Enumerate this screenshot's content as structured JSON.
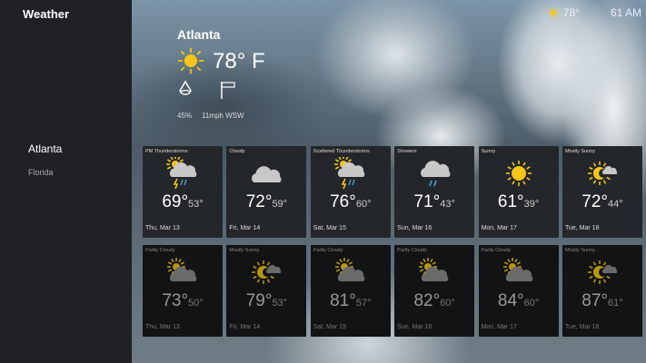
{
  "app": {
    "title": "Weather"
  },
  "sidebar": {
    "location": "Atlanta",
    "region": "Florida"
  },
  "current": {
    "city": "Atlanta",
    "temp": "78° F",
    "icon": "sun-icon",
    "humidity": "45%",
    "wind": "11mph WSW"
  },
  "status": {
    "temp": "78°",
    "time": "61 AM"
  },
  "colors": {
    "sun": "#f5c518",
    "rain": "#4aa8e0",
    "cloud": "#c8c8c8",
    "sidebar": "#1f2124",
    "card": "#23272b"
  },
  "forecast": [
    {
      "cond": "PM Thunderstorms",
      "icon": "thunderstorm",
      "hi": "69°",
      "lo": "53°",
      "date": "Thu, Mar 13"
    },
    {
      "cond": "Cloudy",
      "icon": "cloudy",
      "hi": "72°",
      "lo": "59°",
      "date": "Fri, Mar 14"
    },
    {
      "cond": "Scattered Thunderstorms",
      "icon": "thunderstorm",
      "hi": "76°",
      "lo": "60°",
      "date": "Sat, Mar 15"
    },
    {
      "cond": "Showers",
      "icon": "showers",
      "hi": "71°",
      "lo": "43°",
      "date": "Sun, Mar 16"
    },
    {
      "cond": "Sunny",
      "icon": "sunny",
      "hi": "61°",
      "lo": "39°",
      "date": "Mon, Mar 17"
    },
    {
      "cond": "Mostly Sunny",
      "icon": "mostly-sunny",
      "hi": "72°",
      "lo": "44°",
      "date": "Tue, Mar 18"
    }
  ],
  "forecast2": [
    {
      "cond": "Partly Cloudy",
      "icon": "partly-cloudy",
      "hi": "73°",
      "lo": "50°",
      "date": "Thu, Mar 13"
    },
    {
      "cond": "Mostly Sunny",
      "icon": "mostly-sunny",
      "hi": "79°",
      "lo": "53°",
      "date": "Fri, Mar 14"
    },
    {
      "cond": "Partly Cloudy",
      "icon": "partly-cloudy",
      "hi": "81°",
      "lo": "57°",
      "date": "Sat, Mar 15"
    },
    {
      "cond": "Partly Cloudy",
      "icon": "partly-cloudy",
      "hi": "82°",
      "lo": "60°",
      "date": "Sun, Mar 16"
    },
    {
      "cond": "Partly Cloudy",
      "icon": "partly-cloudy",
      "hi": "84°",
      "lo": "60°",
      "date": "Mon, Mar 17"
    },
    {
      "cond": "Mostly Sunny",
      "icon": "mostly-sunny",
      "hi": "87°",
      "lo": "61°",
      "date": "Tue, Mar 18"
    }
  ]
}
